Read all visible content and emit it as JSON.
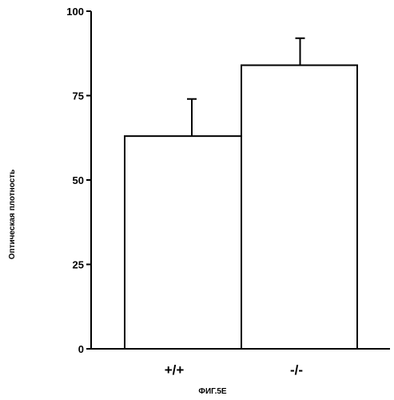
{
  "chart_data": {
    "type": "bar",
    "categories": [
      "+/+",
      "-/-"
    ],
    "values": [
      63,
      84
    ],
    "errors": [
      11,
      8
    ],
    "ylabel": "Оптическая плотность",
    "xlabel": "",
    "ylim": [
      0,
      100
    ],
    "yticks": [
      "0",
      "25",
      "50",
      "75",
      "100"
    ],
    "grid": false,
    "bar_fill": "#ffffff",
    "stroke_color": "#000000"
  },
  "caption": "ФИГ.5E"
}
